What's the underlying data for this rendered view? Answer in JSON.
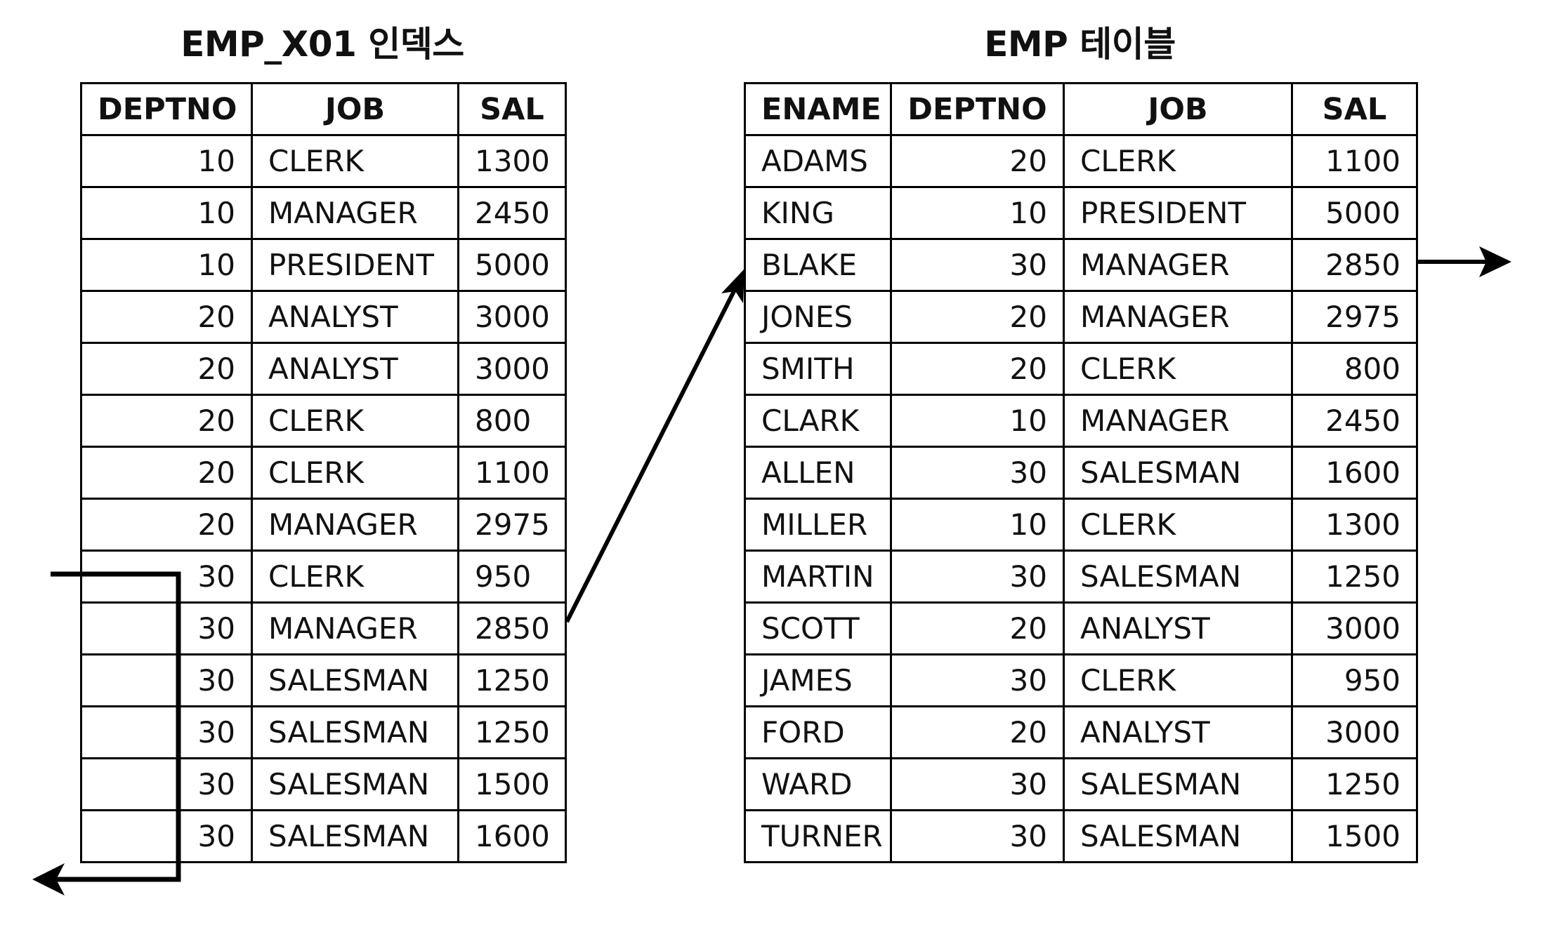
{
  "index_table": {
    "title": "EMP_X01 인덱스",
    "columns": [
      "DEPTNO",
      "JOB",
      "SAL"
    ],
    "rows": [
      [
        "10",
        "CLERK",
        "1300"
      ],
      [
        "10",
        "MANAGER",
        "2450"
      ],
      [
        "10",
        "PRESIDENT",
        "5000"
      ],
      [
        "20",
        "ANALYST",
        "3000"
      ],
      [
        "20",
        "ANALYST",
        "3000"
      ],
      [
        "20",
        "CLERK",
        "800"
      ],
      [
        "20",
        "CLERK",
        "1100"
      ],
      [
        "20",
        "MANAGER",
        "2975"
      ],
      [
        "30",
        "CLERK",
        "950"
      ],
      [
        "30",
        "MANAGER",
        "2850"
      ],
      [
        "30",
        "SALESMAN",
        "1250"
      ],
      [
        "30",
        "SALESMAN",
        "1250"
      ],
      [
        "30",
        "SALESMAN",
        "1500"
      ],
      [
        "30",
        "SALESMAN",
        "1600"
      ]
    ]
  },
  "emp_table": {
    "title": "EMP 테이블",
    "columns": [
      "ENAME",
      "DEPTNO",
      "JOB",
      "SAL"
    ],
    "rows": [
      [
        "ADAMS",
        "20",
        "CLERK",
        "1100"
      ],
      [
        "KING",
        "10",
        "PRESIDENT",
        "5000"
      ],
      [
        "BLAKE",
        "30",
        "MANAGER",
        "2850"
      ],
      [
        "JONES",
        "20",
        "MANAGER",
        "2975"
      ],
      [
        "SMITH",
        "20",
        "CLERK",
        "800"
      ],
      [
        "CLARK",
        "10",
        "MANAGER",
        "2450"
      ],
      [
        "ALLEN",
        "30",
        "SALESMAN",
        "1600"
      ],
      [
        "MILLER",
        "10",
        "CLERK",
        "1300"
      ],
      [
        "MARTIN",
        "30",
        "SALESMAN",
        "1250"
      ],
      [
        "SCOTT",
        "20",
        "ANALYST",
        "3000"
      ],
      [
        "JAMES",
        "30",
        "CLERK",
        "950"
      ],
      [
        "FORD",
        "20",
        "ANALYST",
        "3000"
      ],
      [
        "WARD",
        "30",
        "SALESMAN",
        "1250"
      ],
      [
        "TURNER",
        "30",
        "SALESMAN",
        "1500"
      ]
    ]
  },
  "colors": {
    "line": "#000000",
    "background": "#ffffff",
    "text": "#111111"
  }
}
